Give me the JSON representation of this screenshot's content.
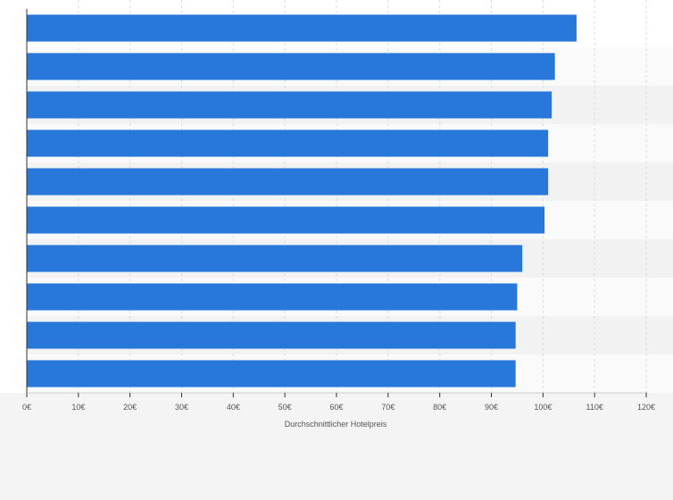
{
  "chart_data": {
    "type": "bar",
    "orientation": "horizontal",
    "categories": [
      "",
      "",
      "",
      "",
      "",
      "",
      "",
      "",
      "",
      ""
    ],
    "values": [
      106.5,
      102.3,
      101.7,
      101.0,
      101.0,
      100.3,
      96.0,
      95.0,
      94.7,
      94.7
    ],
    "xlabel": "Durchschnittlicher Hotelpreis",
    "xlim": [
      0,
      120
    ],
    "xticks": [
      {
        "value": 0,
        "label": "0€"
      },
      {
        "value": 10,
        "label": "10€"
      },
      {
        "value": 20,
        "label": "20€"
      },
      {
        "value": 30,
        "label": "30€"
      },
      {
        "value": 40,
        "label": "40€"
      },
      {
        "value": 50,
        "label": "50€"
      },
      {
        "value": 60,
        "label": "60€"
      },
      {
        "value": 70,
        "label": "70€"
      },
      {
        "value": 80,
        "label": "80€"
      },
      {
        "value": 90,
        "label": "90€"
      },
      {
        "value": 100,
        "label": "100€"
      },
      {
        "value": 110,
        "label": "110€"
      },
      {
        "value": 120,
        "label": "120€"
      }
    ],
    "grid": true,
    "colors": {
      "bar": "#2878dc",
      "band_light": "#fafafa",
      "band_dark": "#f2f2f2",
      "grid": "#dcdcdc",
      "axis": "#333333"
    }
  }
}
